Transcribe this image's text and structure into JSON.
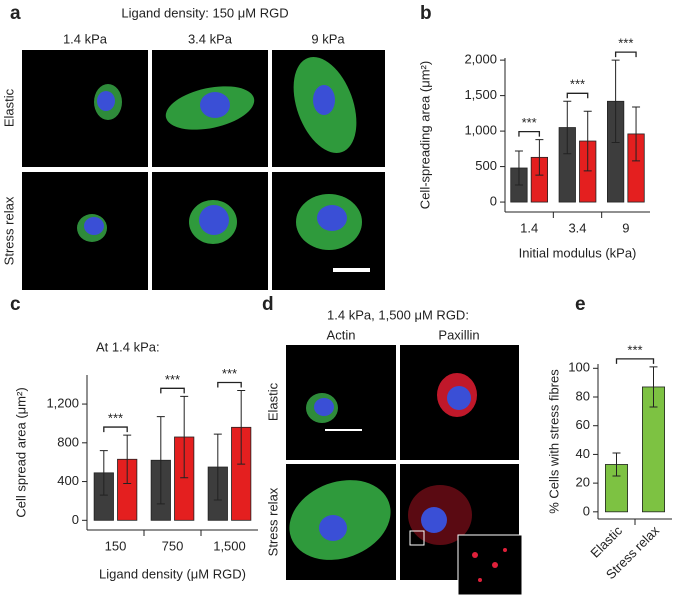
{
  "panels": {
    "letters": [
      "a",
      "b",
      "c",
      "d",
      "e"
    ],
    "a": {
      "title": "Ligand density: 150 μM RGD",
      "columns": [
        "1.4 kPa",
        "3.4 kPa",
        "9 kPa"
      ],
      "rows": [
        "Elastic",
        "Stress relax"
      ]
    },
    "d": {
      "title": "1.4 kPa, 1,500 μM RGD:",
      "columns": [
        "Actin",
        "Paxillin"
      ],
      "rows": [
        "Elastic",
        "Stress relax"
      ]
    }
  },
  "chart_data": [
    {
      "type": "bar",
      "y_label": "Cell-spreading area (μm²)",
      "x_label": "Initial modulus (kPa)",
      "categories": [
        "1.4",
        "3.4",
        "9"
      ],
      "series": [
        {
          "color": "#3d3d3d",
          "values": [
            480,
            1050,
            1420
          ],
          "errors": [
            240,
            370,
            580
          ]
        },
        {
          "color": "#e41f1f",
          "values": [
            630,
            860,
            960
          ],
          "errors": [
            250,
            420,
            380
          ]
        }
      ],
      "significance": [
        "***",
        "***",
        "***"
      ],
      "ylim": [
        -140,
        2030
      ],
      "yticks": [
        0,
        500,
        {
          "value": 1000,
          "label": "1,000"
        },
        {
          "value": 1500,
          "label": "1,500"
        },
        {
          "value": 2000,
          "label": "2,000"
        }
      ]
    },
    {
      "type": "bar",
      "subtitle": "At 1.4 kPa:",
      "y_label": "Cell spread area (μm²)",
      "x_label": "Ligand density (μM RGD)",
      "categories": [
        "150",
        "750",
        "1,500"
      ],
      "series": [
        {
          "color": "#3d3d3d",
          "values": [
            490,
            620,
            550
          ],
          "errors": [
            230,
            450,
            340
          ]
        },
        {
          "color": "#e41f1f",
          "values": [
            630,
            860,
            960
          ],
          "errors": [
            250,
            420,
            380
          ]
        }
      ],
      "significance": [
        "***",
        "***",
        "***"
      ],
      "ylim": [
        -100,
        1500
      ],
      "yticks": [
        0,
        400,
        800,
        {
          "value": 1200,
          "label": "1,200"
        }
      ]
    },
    {
      "type": "bar",
      "y_label": "% Cells with stress fibres",
      "categories": [
        "Elastic",
        "Stress relax"
      ],
      "values": [
        33,
        87
      ],
      "errors": [
        8,
        14
      ],
      "color": "#7dc242",
      "significance": "***",
      "ylim": [
        -5,
        103
      ],
      "yticks": [
        0,
        20,
        40,
        60,
        80,
        100
      ]
    }
  ]
}
